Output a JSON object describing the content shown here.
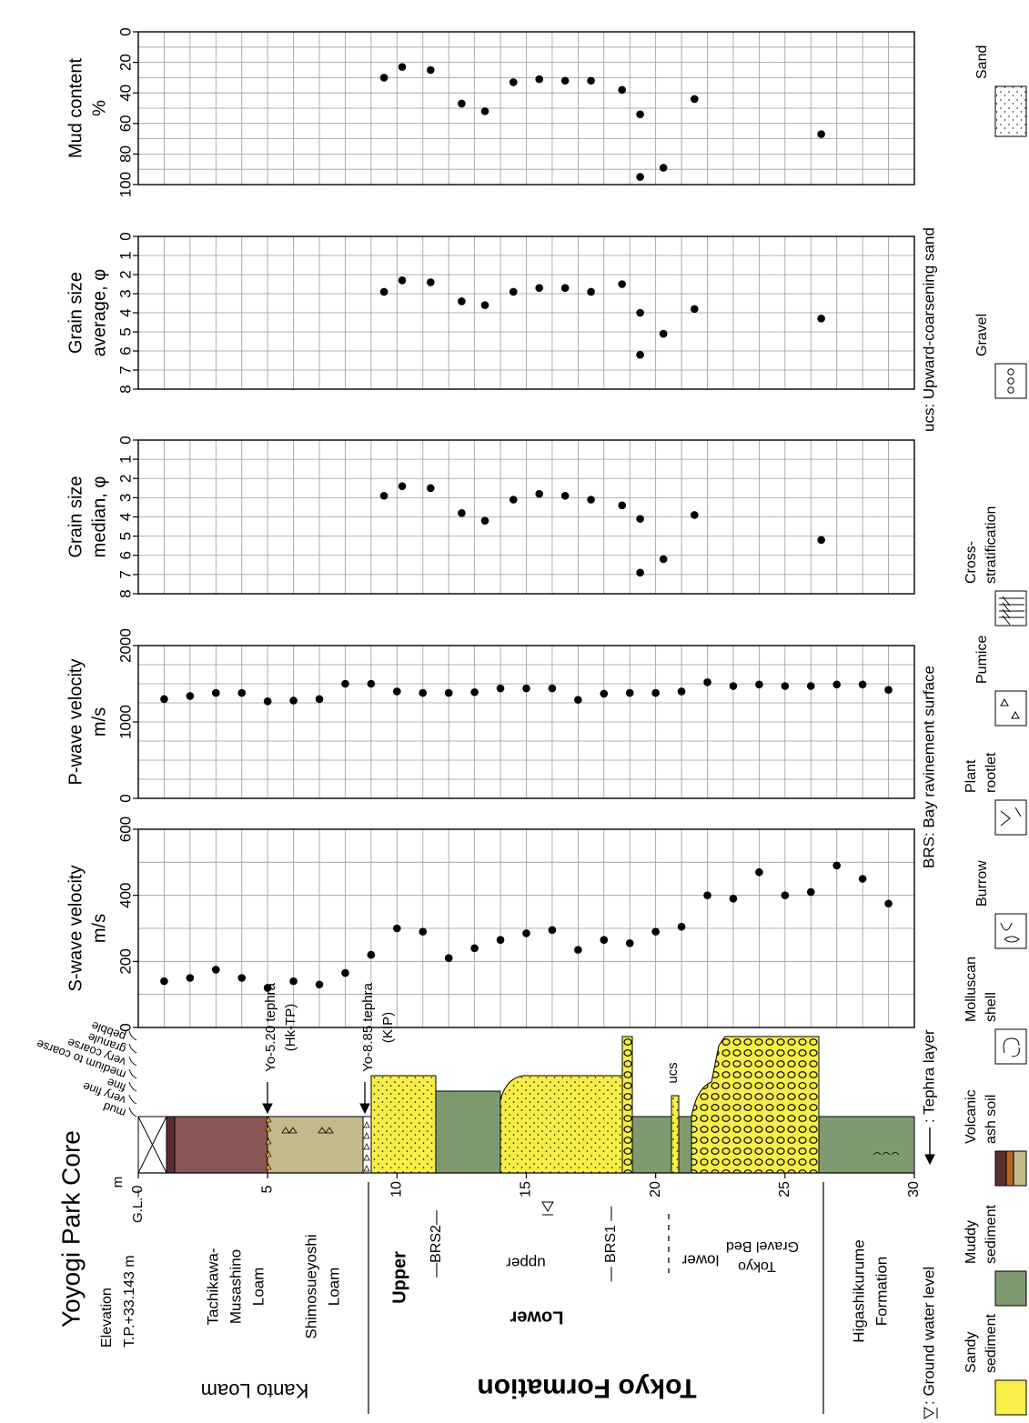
{
  "title": "Yoyogi Park Core",
  "core": {
    "elevation": [
      "Elevation",
      "T.P.+33.143 m"
    ],
    "ground_level": "G.L.–",
    "depth_unit": "m",
    "depth_lim": [
      0,
      30
    ],
    "depth_ticks": [
      0,
      5,
      10,
      15,
      20,
      25,
      30
    ],
    "grain_size_classes": [
      "mud",
      "very fine",
      "fine",
      "medium to coarse",
      "very coarse",
      "granule",
      "pebble"
    ],
    "tephra": [
      [
        "Yo-5.20 tephra",
        "(Hk-TP)"
      ],
      [
        "Yo-8.85 tephra",
        "(KIP)"
      ]
    ],
    "ucs": "ucs",
    "units": {
      "tachikawa": [
        "Tachikawa-",
        "Musashino",
        "Loam"
      ],
      "shimosueyoshi": [
        "Shimosueyoshi",
        "Loam"
      ],
      "kanto": "Kanto Loam",
      "upper": "Upper",
      "brs2": "—BRS2—",
      "upper_sub": "upper",
      "brs1": "— BRS1 —",
      "lower": "Lower",
      "lower_sub": "lower",
      "tokyo_gravel": [
        "Tokyo",
        "Gravel Bed"
      ],
      "tokyo_formation": "Tokyo Formation",
      "higashikurume": [
        "Higashikurume",
        "Formation"
      ]
    }
  },
  "legend": {
    "notes": [
      ": Ground water level",
      ": Tephra layer",
      "BRS: Bay ravinement surface",
      "ucs: Upward-coarsening sand"
    ],
    "items": [
      [
        "Sandy",
        "sediment"
      ],
      [
        "Muddy",
        "sediment"
      ],
      [
        "Volcanic",
        "ash soil"
      ],
      [
        "Molluscan",
        "shell"
      ],
      [
        "Burrow"
      ],
      [
        "Plant",
        "rootlet"
      ],
      [
        "Pumice"
      ],
      [
        "Cross-",
        "stratification"
      ],
      [
        "Gravel"
      ],
      [
        "Sand"
      ]
    ]
  },
  "chart_data": [
    {
      "type": "scatter",
      "title": [
        "S-wave velocity",
        "m/s"
      ],
      "x": [
        1,
        2,
        3,
        4,
        5,
        6,
        7,
        8,
        9,
        10,
        11,
        12,
        13,
        14,
        15,
        16,
        17,
        18,
        19,
        20,
        21,
        22,
        23,
        24,
        25,
        26,
        27,
        28,
        29
      ],
      "values": [
        140,
        150,
        175,
        150,
        120,
        140,
        130,
        165,
        220,
        300,
        290,
        210,
        240,
        265,
        285,
        295,
        235,
        265,
        255,
        290,
        305,
        400,
        390,
        470,
        400,
        410,
        490,
        450,
        375
      ],
      "xlim": [
        0,
        30
      ],
      "minor_xticks": [
        1,
        2,
        3,
        4,
        5,
        6,
        7,
        8,
        9,
        10,
        11,
        12,
        13,
        14,
        15,
        16,
        17,
        18,
        19,
        20,
        21,
        22,
        23,
        24,
        25,
        26,
        27,
        28,
        29
      ],
      "ylim": [
        0,
        600
      ],
      "yticks": [
        0,
        200,
        400,
        600
      ],
      "minor_yticks": [
        100,
        300,
        500
      ],
      "color": "#000000"
    },
    {
      "type": "scatter",
      "title": [
        "P-wave velocity",
        "m/s"
      ],
      "x": [
        1,
        2,
        3,
        4,
        5,
        6,
        7,
        8,
        9,
        10,
        11,
        12,
        13,
        14,
        15,
        16,
        17,
        18,
        19,
        20,
        21,
        22,
        23,
        24,
        25,
        26,
        27,
        28,
        29
      ],
      "values": [
        1300,
        1340,
        1380,
        1380,
        1270,
        1280,
        1300,
        1500,
        1500,
        1400,
        1380,
        1380,
        1390,
        1440,
        1440,
        1440,
        1290,
        1370,
        1380,
        1380,
        1400,
        1520,
        1470,
        1490,
        1470,
        1470,
        1490,
        1490,
        1420
      ],
      "xlim": [
        0,
        30
      ],
      "minor_xticks": [
        1,
        2,
        3,
        4,
        5,
        6,
        7,
        8,
        9,
        10,
        11,
        12,
        13,
        14,
        15,
        16,
        17,
        18,
        19,
        20,
        21,
        22,
        23,
        24,
        25,
        26,
        27,
        28,
        29
      ],
      "ylim": [
        0,
        2000
      ],
      "yticks": [
        0,
        1000,
        2000
      ],
      "minor_yticks": [
        250,
        500,
        750,
        1250,
        1500,
        1750
      ],
      "color": "#000000"
    },
    {
      "type": "scatter",
      "title": [
        "Grain size",
        "median, φ"
      ],
      "x": [
        9.5,
        10.2,
        11.3,
        12.5,
        13.4,
        14.5,
        15.5,
        16.5,
        17.5,
        18.7,
        19.4,
        19.4,
        20.3,
        21.5,
        26.4
      ],
      "values": [
        2.9,
        2.4,
        2.5,
        3.8,
        4.2,
        3.1,
        2.8,
        2.9,
        3.1,
        3.4,
        4.1,
        6.9,
        6.2,
        3.9,
        5.2
      ],
      "xlim": [
        0,
        30
      ],
      "minor_xticks": [
        1,
        2,
        3,
        4,
        5,
        6,
        7,
        8,
        9,
        10,
        11,
        12,
        13,
        14,
        15,
        16,
        17,
        18,
        19,
        20,
        21,
        22,
        23,
        24,
        25,
        26,
        27,
        28,
        29
      ],
      "ylim": [
        8,
        0
      ],
      "yticks": [
        0,
        1,
        2,
        3,
        4,
        5,
        6,
        7,
        8
      ],
      "color": "#000000"
    },
    {
      "type": "scatter",
      "title": [
        "Grain size",
        "average, φ"
      ],
      "x": [
        9.5,
        10.2,
        11.3,
        12.5,
        13.4,
        14.5,
        15.5,
        16.5,
        17.5,
        18.7,
        19.4,
        19.4,
        20.3,
        21.5,
        26.4
      ],
      "values": [
        2.9,
        2.3,
        2.4,
        3.4,
        3.6,
        2.9,
        2.7,
        2.7,
        2.9,
        2.5,
        4.0,
        6.2,
        5.1,
        3.8,
        4.3
      ],
      "xlim": [
        0,
        30
      ],
      "minor_xticks": [
        1,
        2,
        3,
        4,
        5,
        6,
        7,
        8,
        9,
        10,
        11,
        12,
        13,
        14,
        15,
        16,
        17,
        18,
        19,
        20,
        21,
        22,
        23,
        24,
        25,
        26,
        27,
        28,
        29
      ],
      "ylim": [
        8,
        0
      ],
      "yticks": [
        0,
        1,
        2,
        3,
        4,
        5,
        6,
        7,
        8
      ],
      "color": "#000000"
    },
    {
      "type": "scatter",
      "title": [
        "Mud content",
        "%"
      ],
      "x": [
        9.5,
        10.2,
        11.3,
        12.5,
        13.4,
        14.5,
        15.5,
        16.5,
        17.5,
        18.7,
        19.4,
        19.4,
        20.3,
        21.5,
        26.4
      ],
      "values": [
        30,
        23,
        25,
        47,
        52,
        33,
        31,
        32,
        32,
        38,
        54,
        95,
        89,
        44,
        67
      ],
      "xlim": [
        0,
        30
      ],
      "minor_xticks": [
        1,
        2,
        3,
        4,
        5,
        6,
        7,
        8,
        9,
        10,
        11,
        12,
        13,
        14,
        15,
        16,
        17,
        18,
        19,
        20,
        21,
        22,
        23,
        24,
        25,
        26,
        27,
        28,
        29
      ],
      "ylim": [
        100,
        0
      ],
      "yticks": [
        0,
        20,
        40,
        60,
        80,
        100
      ],
      "minor_yticks": [
        10,
        30,
        50,
        70,
        90
      ],
      "color": "#000000"
    }
  ]
}
